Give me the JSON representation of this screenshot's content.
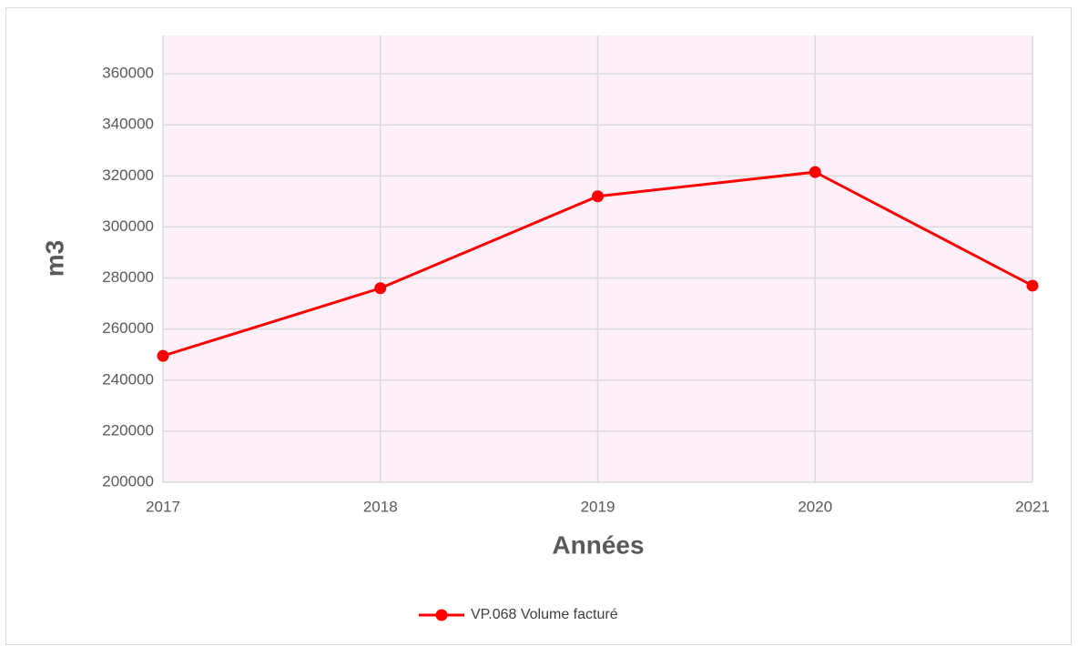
{
  "chart_data": {
    "type": "line",
    "categories": [
      "2017",
      "2018",
      "2019",
      "2020",
      "2021"
    ],
    "series": [
      {
        "name": "VP.068 Volume facturé",
        "color": "#ff0000",
        "values": [
          249500,
          276000,
          312000,
          321500,
          277000
        ]
      }
    ],
    "xlabel": "Années",
    "ylabel": "m3",
    "ylim": [
      200000,
      375000
    ],
    "yticks": [
      200000,
      220000,
      240000,
      260000,
      280000,
      300000,
      320000,
      340000,
      360000
    ],
    "grid": true,
    "legend": "bottom",
    "plot_background": "#fdf0fb"
  }
}
